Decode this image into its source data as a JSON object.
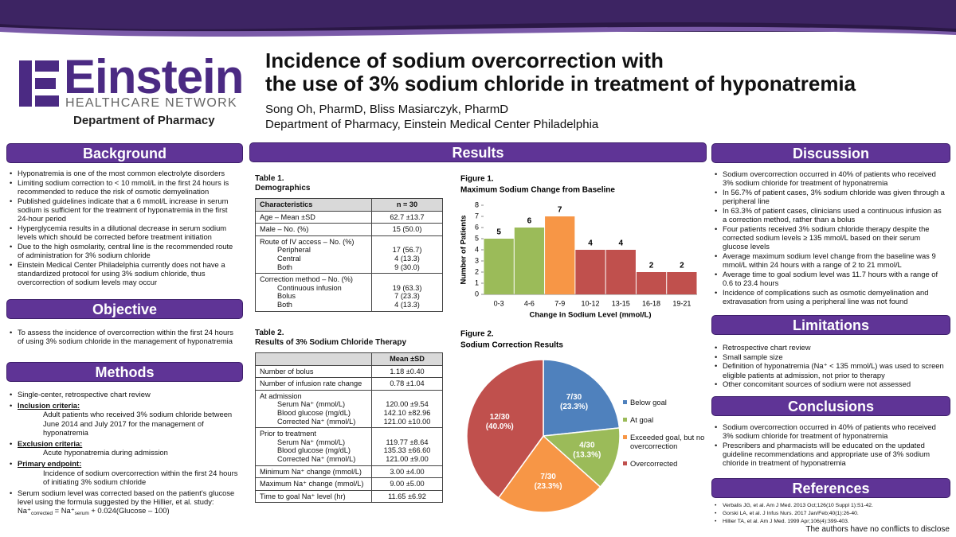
{
  "header": {
    "logo": "Einstein",
    "logo_sub": "HEALTHCARE NETWORK",
    "department": "Department of Pharmacy",
    "title": [
      "Incidence of sodium overcorrection with",
      "the use of 3% sodium chloride in treatment of hyponatremia"
    ],
    "authors": "Song Oh, PharmD, Bliss Masiarczyk, PharmD",
    "affiliation": "Department of Pharmacy, Einstein Medical Center Philadelphia"
  },
  "sections": {
    "background": {
      "title": "Background",
      "items": [
        "Hyponatremia is one of the most common electrolyte disorders",
        "Limiting sodium correction to < 10 mmol/L in the first 24 hours is recommended to reduce the risk of osmotic demyelination",
        "Published guidelines indicate that a 6 mmol/L increase in serum sodium is sufficient for the treatment of hyponatremia in the first 24-hour period",
        "Hyperglycemia results in a dilutional decrease in serum sodium levels which should be corrected before treatment initiation",
        "Due to the high osmolarity, central line is the recommended route of administration for 3% sodium chloride",
        "Einstein Medical Center Philadelphia currently does not have a standardized protocol for using 3% sodium chloride, thus overcorrection of sodium levels may occur"
      ]
    },
    "objective": {
      "title": "Objective",
      "items": [
        "To assess the incidence of overcorrection within the first 24 hours of using 3% sodium chloride in the management of hyponatremia"
      ]
    },
    "methods": {
      "title": "Methods",
      "items": [
        "Single-center, retrospective chart review",
        {
          "heading": "Inclusion criteria:",
          "text": "Adult patients who received 3% sodium chloride between June 2014 and July 2017 for the management of hyponatremia"
        },
        {
          "heading": "Exclusion criteria:",
          "text": "Acute hyponatremia during admission"
        },
        {
          "heading": "Primary endpoint:",
          "text": "Incidence of sodium overcorrection within the first 24 hours of initiating 3% sodium chloride"
        },
        {
          "text": "Serum sodium level was corrected based on the patient's glucose level using the formula suggested by the Hillier, et al. study:",
          "formula": [
            "Na⁺",
            "corrected",
            " = Na⁺",
            "serum",
            " + 0.024(Glucose – 100)"
          ]
        }
      ]
    },
    "results": {
      "title": "Results"
    },
    "discussion": {
      "title": "Discussion",
      "items": [
        "Sodium overcorrection occurred in 40% of patients who received 3% sodium chloride for treatment of hyponatremia",
        "In 56.7% of patient cases, 3% sodium chloride was given through a peripheral line",
        "In 63.3% of patient cases, clinicians used a continuous infusion as a correction method, rather than a bolus",
        "Four patients received 3% sodium chloride therapy despite the corrected sodium levels  ≥ 135 mmol/L based on their serum glucose levels",
        "Average maximum sodium level change from the baseline was 9 mmol/L within 24 hours with a range of 2 to 21 mmol/L",
        "Average time to goal sodium level was 11.7 hours with a range of 0.6 to 23.4 hours",
        "Incidence of complications such as osmotic demyelination and extravasation from using a peripheral line was not found"
      ]
    },
    "limitations": {
      "title": "Limitations",
      "items": [
        "Retrospective chart review",
        "Small sample size",
        "Definition of hyponatremia (Na⁺ < 135 mmol/L) was used to screen eligible patients at admission, not prior to therapy",
        "Other concomitant sources of sodium were not assessed"
      ]
    },
    "conclusions": {
      "title": "Conclusions",
      "items": [
        "Sodium overcorrection occurred in 40% of patients who received 3% sodium chloride for treatment of hyponatremia",
        "Prescribers and pharmacists will be educated on the updated guideline recommendations and appropriate use of 3% sodium chloride in treatment of hyponatremia"
      ]
    },
    "references": {
      "title": "References",
      "items": [
        "Verbalis JG, et al. Am J Med. 2013 Oct;126(10 Suppl 1):S1-42.",
        "Gorski LA, et al. J Infus Nurs. 2017 Jan/Feb;40(1):26-40.",
        "Hillier TA, et al. Am J Med. 1999 Apr;106(4):399-403."
      ]
    }
  },
  "tables": [
    {
      "label": "Table 1.",
      "title": "Demographics",
      "columns": [
        "Characteristics",
        "n = 30"
      ],
      "rows": [
        {
          "label": "Age – Mean ±SD",
          "value": "62.7 ±13.7"
        },
        {
          "label": "Male – No. (%)",
          "value": "15 (50.0)"
        },
        {
          "label": "Route of IV access – No. (%)",
          "items": [
            {
              "label": "Peripheral",
              "value": "17 (56.7)"
            },
            {
              "label": "Central",
              "value": "4 (13.3)"
            },
            {
              "label": "Both",
              "value": "9 (30.0)"
            }
          ]
        },
        {
          "label": "Correction method – No. (%)",
          "items": [
            {
              "label": "Continuous infusion",
              "value": "19 (63.3)"
            },
            {
              "label": "Bolus",
              "value": "7 (23.3)"
            },
            {
              "label": "Both",
              "value": "4 (13.3)"
            }
          ]
        }
      ]
    },
    {
      "label": "Table 2.",
      "title": "Results of 3% Sodium Chloride Therapy",
      "columns": [
        "Mean ±SD"
      ],
      "rows": [
        {
          "label": "Number of bolus",
          "value": "1.18 ±0.40"
        },
        {
          "label": "Number of infusion rate change",
          "value": "0.78 ±1.04"
        },
        {
          "label": "At admission",
          "items": [
            {
              "label": "Serum Na⁺ (mmol/L)",
              "value": "120.00 ±9.54"
            },
            {
              "label": "Blood glucose (mg/dL)",
              "value": "142.10 ±82.96"
            },
            {
              "label": "Corrected Na⁺ (mmol/L)",
              "value": "121.00 ±10.00"
            }
          ]
        },
        {
          "label": "Prior to treatment",
          "items": [
            {
              "label": "Serum Na⁺ (mmol/L)",
              "value": "119.77 ±8.64"
            },
            {
              "label": "Blood glucose (mg/dL)",
              "value": "135.33 ±66.60"
            },
            {
              "label": "Corrected Na⁺ (mmol/L)",
              "value": "121.00 ±9.00"
            }
          ]
        },
        {
          "label": "Minimum Na⁺ change (mmol/L)",
          "value": "3.00 ±4.00"
        },
        {
          "label": "Maximum Na⁺ change (mmol/L)",
          "value": "9.00 ±5.00"
        },
        {
          "label": "Time to goal Na⁺ level (hr)",
          "value": "11.65 ±6.92"
        }
      ]
    }
  ],
  "chart_data": [
    {
      "type": "bar",
      "title": "Figure 1.",
      "subtitle": "Maximum Sodium Change from Baseline",
      "x_label": "Change in Sodium Level (mmol/L)",
      "y_label": "Number of Patients",
      "categories": [
        "0-3",
        "4-6",
        "7-9",
        "10-12",
        "13-15",
        "16-18",
        "19-21"
      ],
      "values": [
        5,
        6,
        7,
        4,
        4,
        2,
        2
      ],
      "colors": [
        "#9bbb59",
        "#9bbb59",
        "#f79646",
        "#c0504d",
        "#c0504d",
        "#c0504d",
        "#c0504d"
      ],
      "ylim": [
        0,
        8
      ],
      "yticks": [
        0,
        1,
        2,
        3,
        4,
        5,
        6,
        7,
        8
      ]
    },
    {
      "type": "pie",
      "title": "Figure 2.",
      "subtitle": "Sodium Correction Results",
      "categories": [
        "Below goal",
        "At goal",
        "Exceeded goal, but no overcorrection",
        "Overcorrected"
      ],
      "values": [
        23.3,
        13.3,
        23.3,
        40.0
      ],
      "value_labels": [
        [
          "7/30",
          "(23.3%)"
        ],
        [
          "4/30",
          "(13.3%)"
        ],
        [
          "7/30",
          "(23.3%)"
        ],
        [
          "12/30",
          "(40.0%)"
        ]
      ],
      "colors": [
        "#4f81bd",
        "#9bbb59",
        "#f79646",
        "#c0504d"
      ]
    }
  ],
  "footer": "The authors have no conflicts to disclose"
}
